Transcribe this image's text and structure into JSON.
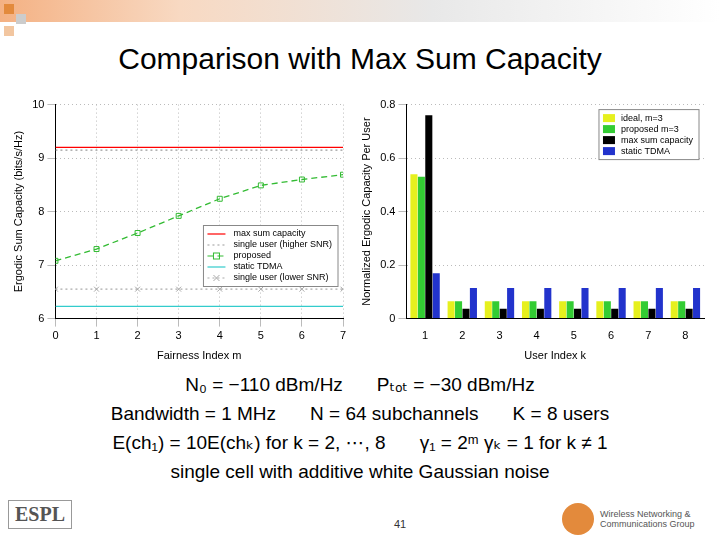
{
  "title": "Comparison with Max Sum Capacity",
  "chart_data": [
    {
      "type": "line",
      "x_label": "Fairness Index m",
      "y_label": "Ergodic Sum Capacity (bits/s/Hz)",
      "x": [
        0,
        1,
        2,
        3,
        4,
        5,
        6,
        7
      ],
      "series": [
        {
          "name": "max sum capacity",
          "color": "#ff0000",
          "line_style": "solid",
          "marker": "none",
          "values": [
            9.2,
            9.2,
            9.2,
            9.2,
            9.2,
            9.2,
            9.2,
            9.2
          ]
        },
        {
          "name": "single user (higher SNR)",
          "color": "#999999",
          "line_style": "dotted",
          "marker": "none",
          "values": [
            9.15,
            9.15,
            9.15,
            9.15,
            9.15,
            9.15,
            9.15,
            9.15
          ]
        },
        {
          "name": "proposed",
          "color": "#33bb33",
          "line_style": "dashed",
          "marker": "square",
          "values": [
            7.08,
            7.3,
            7.6,
            7.92,
            8.24,
            8.49,
            8.6,
            8.69
          ]
        },
        {
          "name": "static TDMA",
          "color": "#33cccc",
          "line_style": "solid",
          "marker": "none",
          "values": [
            6.23,
            6.23,
            6.23,
            6.23,
            6.23,
            6.23,
            6.23,
            6.23
          ]
        },
        {
          "name": "single user (lower SNR)",
          "color": "#aaaaaa",
          "line_style": "dotted",
          "marker": "cross",
          "values": [
            6.55,
            6.55,
            6.55,
            6.55,
            6.55,
            6.55,
            6.55,
            6.55
          ]
        }
      ],
      "xlim": [
        0,
        7
      ],
      "xticks": [
        0,
        1,
        2,
        3,
        4,
        5,
        6,
        7
      ],
      "ylim": [
        6,
        10
      ],
      "yticks": [
        6,
        7,
        8,
        9,
        10
      ],
      "grid": true,
      "legend": "lower right"
    },
    {
      "type": "bar",
      "x_label": "User Index k",
      "y_label": "Normalized Ergodic Capacity Per User",
      "categories": [
        "1",
        "2",
        "3",
        "4",
        "5",
        "6",
        "7",
        "8"
      ],
      "series": [
        {
          "name": "ideal, m=3",
          "color": "#e6f01e",
          "values": [
            0.54,
            0.065,
            0.065,
            0.065,
            0.065,
            0.065,
            0.065,
            0.065
          ]
        },
        {
          "name": "proposed m=3",
          "color": "#33cc33",
          "values": [
            0.53,
            0.065,
            0.065,
            0.065,
            0.065,
            0.065,
            0.065,
            0.065
          ]
        },
        {
          "name": "max sum capacity",
          "color": "#000000",
          "values": [
            0.76,
            0.037,
            0.037,
            0.037,
            0.037,
            0.037,
            0.037,
            0.037
          ]
        },
        {
          "name": "static TDMA",
          "color": "#2233cc",
          "values": [
            0.17,
            0.114,
            0.114,
            0.114,
            0.114,
            0.114,
            0.114,
            0.114
          ]
        }
      ],
      "ylim": [
        0,
        0.8
      ],
      "yticks": [
        0,
        0.2,
        0.4,
        0.6,
        0.8
      ],
      "grid": true,
      "legend": "upper right"
    }
  ],
  "parameters": [
    [
      "N₀ = −110 dBm/Hz",
      "Pₜₒₜ = −30 dBm/Hz"
    ],
    [
      "Bandwidth = 1 MHz",
      "N = 64 subchannels",
      "K = 8 users"
    ],
    [
      "E(ch₁) = 10E(chₖ) for k = 2, ⋯, 8",
      "γ₁ = 2ᵐ γₖ = 1 for k ≠ 1"
    ],
    [
      "single cell with additive white Gaussian noise"
    ]
  ],
  "footer": {
    "page": "41",
    "left_logo": "ESPL",
    "right_logo": "Wireless Networking & Communications Group"
  }
}
